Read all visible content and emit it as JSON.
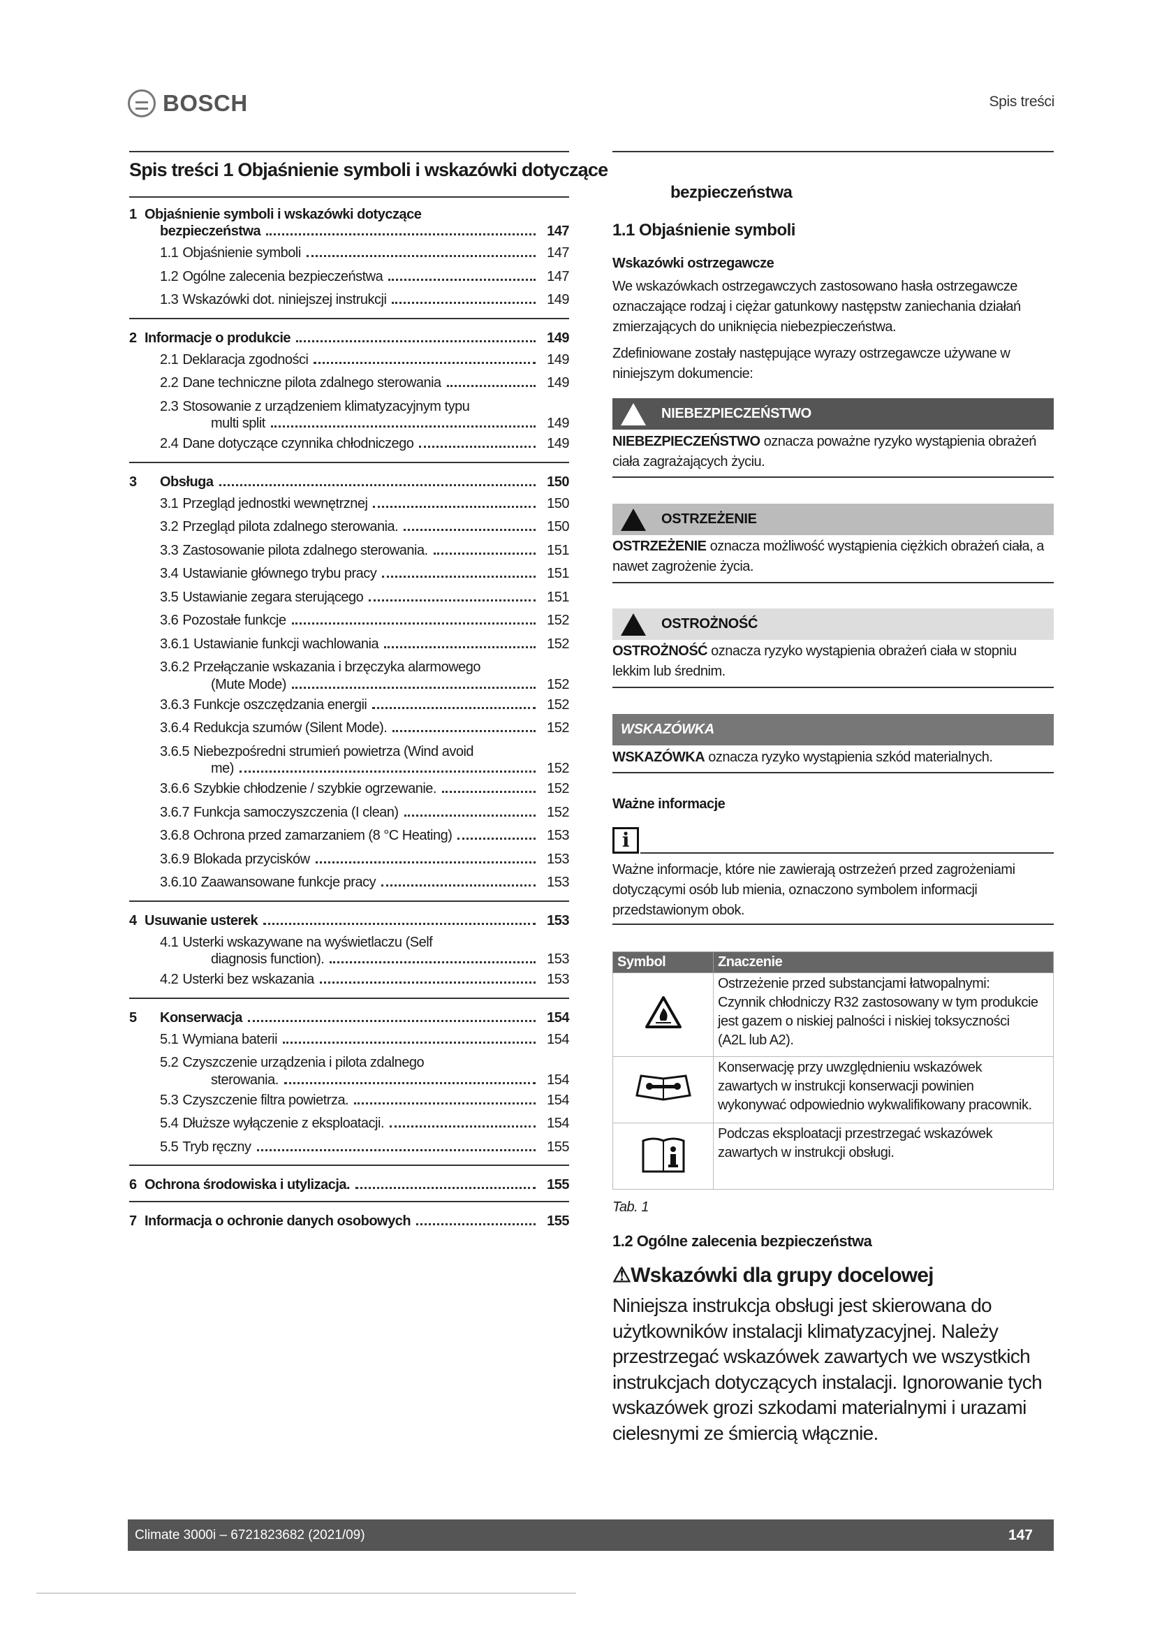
{
  "header": {
    "brand": "BOSCH",
    "section": "Spis treści"
  },
  "toc": {
    "title": "Spis treści 1 Objaśnienie symboli i wskazówki dotyczące",
    "sections": [
      [
        {
          "num": "1",
          "lines": [
            "Objaśnienie symboli i wskazówki dotyczące",
            "bezpieczeństwa"
          ],
          "page": "147",
          "bold": true
        },
        {
          "num": "1.1",
          "lines": [
            "Objaśnienie symboli"
          ],
          "page": "147"
        },
        {
          "num": "1.2",
          "lines": [
            "Ogólne zalecenia bezpieczeństwa"
          ],
          "page": "147"
        },
        {
          "num": "1.3",
          "lines": [
            "Wskazówki dot. niniejszej instrukcji"
          ],
          "page": "149"
        }
      ],
      [
        {
          "num": "2",
          "lines": [
            "Informacje o produkcie"
          ],
          "page": "149",
          "bold": true
        },
        {
          "num": "2.1",
          "lines": [
            "Deklaracja zgodności"
          ],
          "page": "149"
        },
        {
          "num": "2.2",
          "lines": [
            "Dane techniczne pilota zdalnego sterowania"
          ],
          "page": "149"
        },
        {
          "num": "2.3",
          "lines": [
            "Stosowanie z urządzeniem klimatyzacyjnym typu",
            "multi split"
          ],
          "page": "149"
        },
        {
          "num": "2.4",
          "lines": [
            "Dane dotyczące czynnika chłodniczego"
          ],
          "page": "149"
        }
      ],
      [
        {
          "num": "3",
          "lines": [
            "Obsługa"
          ],
          "page": "150",
          "bold": true
        },
        {
          "num": "3.1",
          "lines": [
            "Przegląd jednostki wewnętrznej"
          ],
          "page": "150"
        },
        {
          "num": "3.2",
          "lines": [
            "Przegląd pilota zdalnego sterowania."
          ],
          "page": "150"
        },
        {
          "num": "3.3",
          "lines": [
            "Zastosowanie pilota zdalnego sterowania."
          ],
          "page": "151"
        },
        {
          "num": "3.4",
          "lines": [
            "Ustawianie głównego trybu pracy"
          ],
          "page": "151"
        },
        {
          "num": "3.5",
          "lines": [
            "Ustawianie zegara sterującego"
          ],
          "page": "151"
        },
        {
          "num": "3.6",
          "lines": [
            "Pozostałe funkcje"
          ],
          "page": "152"
        },
        {
          "num": "3.6.1",
          "lines": [
            "Ustawianie funkcji wachlowania"
          ],
          "page": "152"
        },
        {
          "num": "3.6.2",
          "lines": [
            "Przełączanie wskazania i brzęczyka alarmowego",
            "(Mute Mode)"
          ],
          "page": "152"
        },
        {
          "num": "3.6.3",
          "lines": [
            "Funkcje oszczędzania energii"
          ],
          "page": "152"
        },
        {
          "num": "3.6.4",
          "lines": [
            "Redukcja szumów (Silent Mode)."
          ],
          "page": "152"
        },
        {
          "num": "3.6.5",
          "lines": [
            "Niebezpośredni strumień powietrza (Wind avoid",
            "me)"
          ],
          "page": "152"
        },
        {
          "num": "3.6.6",
          "lines": [
            "Szybkie chłodzenie / szybkie ogrzewanie."
          ],
          "page": "152"
        },
        {
          "num": "3.6.7",
          "lines": [
            "Funkcja samoczyszczenia (I clean)"
          ],
          "page": "152"
        },
        {
          "num": "3.6.8",
          "lines": [
            "Ochrona przed zamarzaniem (8 °C Heating)"
          ],
          "page": "153"
        },
        {
          "num": "3.6.9",
          "lines": [
            "Blokada przycisków"
          ],
          "page": "153"
        },
        {
          "num": "3.6.10",
          "lines": [
            "Zaawansowane funkcje pracy"
          ],
          "page": "153"
        }
      ],
      [
        {
          "num": "4",
          "lines": [
            "Usuwanie usterek"
          ],
          "page": "153",
          "bold": true
        },
        {
          "num": "4.1",
          "lines": [
            "Usterki wskazywane na wyświetlaczu (Self",
            "diagnosis function)."
          ],
          "page": "153"
        },
        {
          "num": "4.2",
          "lines": [
            "Usterki bez wskazania"
          ],
          "page": "153"
        }
      ],
      [
        {
          "num": "5",
          "lines": [
            "Konserwacja"
          ],
          "page": "154",
          "bold": true
        },
        {
          "num": "5.1",
          "lines": [
            "Wymiana baterii"
          ],
          "page": "154"
        },
        {
          "num": "5.2",
          "lines": [
            "Czyszczenie urządzenia i pilota zdalnego",
            "sterowania."
          ],
          "page": "154"
        },
        {
          "num": "5.3",
          "lines": [
            "Czyszczenie filtra powietrza."
          ],
          "page": "154"
        },
        {
          "num": "5.4",
          "lines": [
            "Dłuższe wyłączenie z eksploatacji."
          ],
          "page": "154"
        },
        {
          "num": "5.5",
          "lines": [
            "Tryb ręczny"
          ],
          "page": "155"
        }
      ],
      [
        {
          "num": "6",
          "lines": [
            "Ochrona środowiska i utylizacja."
          ],
          "page": "155",
          "bold": true
        }
      ],
      [
        {
          "num": "7",
          "lines": [
            "Informacja o ochronie danych osobowych"
          ],
          "page": "155",
          "bold": true
        }
      ]
    ]
  },
  "right": {
    "cont_title": "bezpieczeństwa",
    "h11": "1.1 Objaśnienie symboli",
    "warn_head": "Wskazówki ostrzegawcze",
    "warn_p": [
      "We wskazówkach ostrzegawczych zastosowano hasła ostrzegawcze",
      "oznaczające rodzaj i ciężar gatunkowy następstw zaniechania działań",
      "zmierzających do uniknięcia niebezpieczeństwa."
    ],
    "def_p": [
      "Zdefiniowane zostały następujące wyrazy ostrzegawcze używane w",
      "niniejszym dokumencie:"
    ],
    "danger": {
      "label": "NIEBEZPIECZEŃSTWO",
      "term": "NIEBEZPIECZEŃSTWO",
      "text": [
        " oznacza poważne ryzyko wystąpienia obrażeń",
        "ciała zagrażających życiu."
      ],
      "color": "#555555"
    },
    "warning": {
      "label": "OSTRZEŻENIE",
      "term": "OSTRZEŻENIE",
      "text": [
        " oznacza możliwość wystąpienia ciężkich obrażeń ciała, a",
        "nawet zagrożenie życia."
      ],
      "color": "#bbbbbb"
    },
    "caution": {
      "label": "OSTROŻNOŚĆ",
      "term": "OSTROŻNOŚĆ",
      "text": [
        " oznacza ryzyko wystąpienia obrażeń ciała w stopniu",
        "lekkim lub średnim."
      ],
      "color": "#dddddd"
    },
    "notice": {
      "label": "WSKAZÓWKA",
      "term": "WSKAZÓWKA",
      "text": [
        " oznacza ryzyko wystąpienia szkód materialnych."
      ],
      "color": "#777777"
    },
    "info_head": "Ważne informacje",
    "info_p": [
      "Ważne informacje, które nie zawierają ostrzeżeń przed zagrożeniami",
      "dotyczącymi osób lub mienia, oznaczono symbolem informacji",
      "przedstawionym obok."
    ],
    "table": {
      "headers": [
        "Symbol",
        "Znaczenie"
      ],
      "rows": [
        {
          "icon": "flammable-warning-icon",
          "text": [
            "Ostrzeżenie przed substancjami łatwopalnymi:",
            "Czynnik chłodniczy R32 zastosowany w tym produkcie",
            "jest gazem o niskiej palności i niskiej toksyczności",
            "(A2L lub A2)."
          ]
        },
        {
          "icon": "service-manual-icon",
          "text": [
            "Konserwację przy uwzględnieniu wskazówek",
            "zawartych w instrukcji konserwacji powinien",
            "wykonywać odpowiednio wykwalifikowany pracownik."
          ]
        },
        {
          "icon": "operating-manual-icon",
          "text": [
            "Podczas eksploatacji przestrzegać wskazówek",
            "zawartych w instrukcji obsługi."
          ]
        }
      ],
      "caption": "Tab. 1"
    },
    "h12": "1.2 Ogólne zalecenia bezpieczeństwa",
    "target_head": "Wskazówki dla grupy docelowej",
    "target_p": [
      "Niniejsza instrukcja obsługi jest skierowana do",
      "użytkowników instalacji klimatyzacyjnej. Należy",
      "przestrzegać wskazówek zawartych we wszystkich",
      "instrukcjach dotyczących instalacji. Ignorowanie tych",
      "wskazówek grozi szkodami materialnymi i urazami",
      "cielesnymi ze śmiercią włącznie."
    ]
  },
  "footer": {
    "doc": "Climate 3000i – 6721823682 (2021/09)",
    "page": "147"
  }
}
